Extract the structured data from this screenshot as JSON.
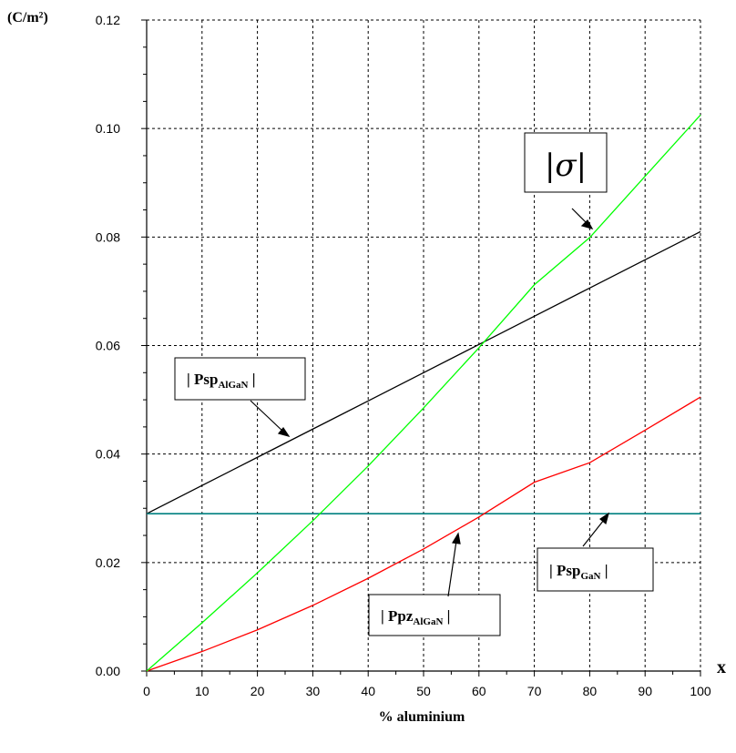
{
  "chart_data": {
    "type": "line",
    "title": "",
    "ylabel": "(C/m²)",
    "xlabel": "% aluminium",
    "x_axis_tag": "x",
    "xlim": [
      0,
      100
    ],
    "ylim": [
      0,
      0.12
    ],
    "grid": true,
    "x_ticks": [
      0,
      10,
      20,
      30,
      40,
      50,
      60,
      70,
      80,
      90,
      100
    ],
    "y_ticks": [
      "0.00",
      "0.02",
      "0.04",
      "0.06",
      "0.08",
      "0.10",
      "0.12"
    ],
    "x_values": [
      0,
      10,
      20,
      30,
      40,
      50,
      60,
      70,
      80,
      90,
      100
    ],
    "series": [
      {
        "name_main": "| Psp",
        "name_sub": "AlGaN",
        "name_tail": " |",
        "color": "#000000",
        "values": [
          0.029,
          0.0342,
          0.0394,
          0.0446,
          0.0498,
          0.055,
          0.0602,
          0.0654,
          0.0706,
          0.0758,
          0.081
        ]
      },
      {
        "name_main": "| Psp",
        "name_sub": "GaN",
        "name_tail": " |",
        "color": "#008080",
        "values": [
          0.029,
          0.029,
          0.029,
          0.029,
          0.029,
          0.029,
          0.029,
          0.029,
          0.029,
          0.029,
          0.029
        ]
      },
      {
        "name_main": "| Ppz",
        "name_sub": "AlGaN",
        "name_tail": " |",
        "color": "#ff0000",
        "values": [
          0,
          0.0036,
          0.0076,
          0.0121,
          0.0171,
          0.0225,
          0.0284,
          0.0348,
          0.0384,
          0.0444,
          0.0505
        ]
      },
      {
        "name_main": "|σ|",
        "name_sub": "",
        "name_tail": "",
        "color": "#00ff00",
        "values": [
          0,
          0.0089,
          0.0181,
          0.0277,
          0.0378,
          0.0485,
          0.0596,
          0.0712,
          0.0799,
          0.0912,
          0.1025
        ]
      }
    ]
  }
}
